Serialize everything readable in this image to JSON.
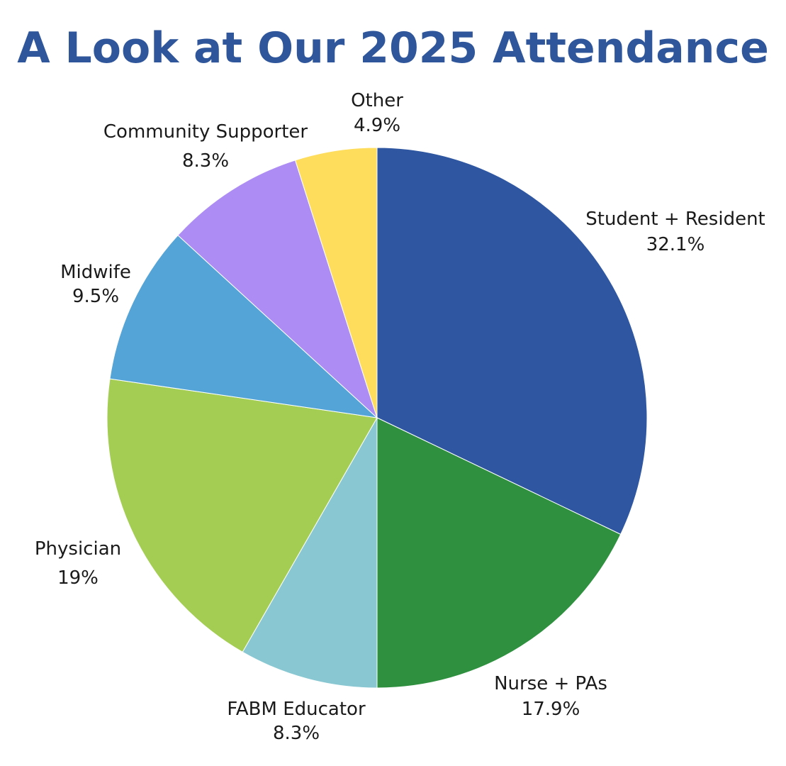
{
  "chart_data": {
    "type": "pie",
    "title": "A Look at Our 2025 Attendance",
    "start_angle_deg": 0,
    "direction": "clockwise",
    "slices": [
      {
        "label": "Student + Resident",
        "value": 32.1,
        "value_label": "32.1%",
        "color": "#2e56a1"
      },
      {
        "label": "Nurse + PAs",
        "value": 17.9,
        "value_label": "17.9%",
        "color": "#2f913f"
      },
      {
        "label": "FABM Educator",
        "value": 8.3,
        "value_label": "8.3%",
        "color": "#89c8d2"
      },
      {
        "label": "Physician",
        "value": 19,
        "value_label": "19%",
        "color": "#a4cd53"
      },
      {
        "label": "Midwife",
        "value": 9.5,
        "value_label": "9.5%",
        "color": "#54a4d7"
      },
      {
        "label": "Community Supporter",
        "value": 8.3,
        "value_label": "8.3%",
        "color": "#ad8df3"
      },
      {
        "label": "Other",
        "value": 4.9,
        "value_label": "4.9%",
        "color": "#fedc5c"
      }
    ]
  }
}
